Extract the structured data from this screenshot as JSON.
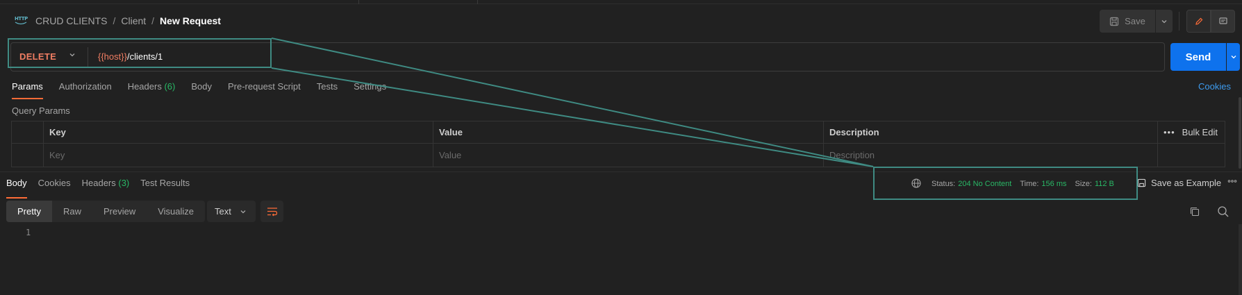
{
  "breadcrumb": {
    "icon": "http-icon",
    "collection": "CRUD CLIENTS",
    "separator1": "/",
    "folder": "Client",
    "separator2": "/",
    "request": "New Request"
  },
  "toolbar": {
    "save_label": "Save"
  },
  "request": {
    "method": "DELETE",
    "url_variable": "{{host}}",
    "url_path": "/clients/1",
    "send_label": "Send"
  },
  "request_tabs": [
    {
      "label": "Params",
      "active": true
    },
    {
      "label": "Authorization"
    },
    {
      "label": "Headers",
      "count": "(6)"
    },
    {
      "label": "Body"
    },
    {
      "label": "Pre-request Script"
    },
    {
      "label": "Tests"
    },
    {
      "label": "Settings"
    }
  ],
  "cookies_label": "Cookies",
  "query_params": {
    "title": "Query Params",
    "headers": {
      "key": "Key",
      "value": "Value",
      "description": "Description",
      "bulk_edit": "Bulk Edit"
    },
    "placeholders": {
      "key": "Key",
      "value": "Value",
      "description": "Description"
    }
  },
  "response": {
    "tabs": [
      {
        "label": "Body",
        "active": true
      },
      {
        "label": "Cookies"
      },
      {
        "label": "Headers",
        "count": "(3)"
      },
      {
        "label": "Test Results"
      }
    ],
    "status_label": "Status:",
    "status_value": "204 No Content",
    "time_label": "Time:",
    "time_value": "156 ms",
    "size_label": "Size:",
    "size_value": "112 B",
    "save_example_label": "Save as Example",
    "view_modes": [
      "Pretty",
      "Raw",
      "Preview",
      "Visualize"
    ],
    "format": "Text",
    "line_number": "1"
  },
  "colors": {
    "accent": "#ff6c37",
    "method_delete": "#f07d62",
    "send": "#0e72ed",
    "success": "#29b866",
    "annotation": "#3f8b83"
  }
}
